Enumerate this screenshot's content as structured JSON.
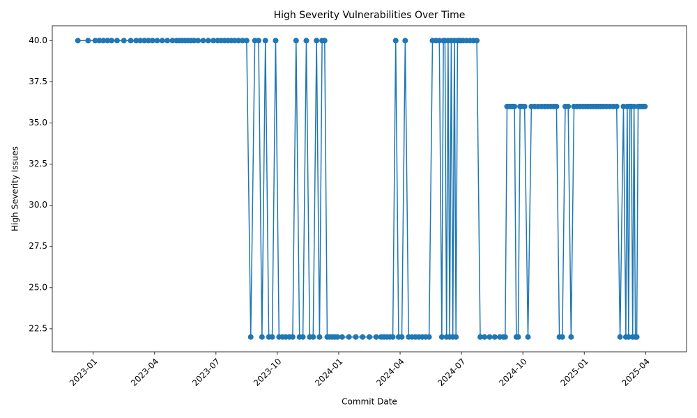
{
  "chart_data": {
    "type": "line",
    "title": "High Severity Vulnerabilities Over Time",
    "x_label": "Commit Date",
    "y_label": "High Severity Issues",
    "color": "#1f77b4",
    "grid": false,
    "xlim": [
      "2022-11",
      "2025-06"
    ],
    "xticks": [
      "2023-01",
      "2023-04",
      "2023-07",
      "2023-10",
      "2024-01",
      "2024-04",
      "2024-07",
      "2024-10",
      "2025-01",
      "2025-04"
    ],
    "ylim": [
      21.1,
      40.9
    ],
    "yticks": [
      22.5,
      {
        "value": 25,
        "label": "25.0"
      },
      27.5,
      {
        "value": 30,
        "label": "30.0"
      },
      32.5,
      {
        "value": 35,
        "label": "35.0"
      },
      37.5,
      {
        "value": 40,
        "label": "40.0"
      }
    ],
    "x": [
      "2022-12",
      "2022-12",
      "2023-01",
      "2023-01",
      "2023-01",
      "2023-01",
      "2023-01",
      "2023-02",
      "2023-02",
      "2023-02",
      "2023-03",
      "2023-03",
      "2023-03",
      "2023-03",
      "2023-03",
      "2023-04",
      "2023-04",
      "2023-04",
      "2023-04",
      "2023-05",
      "2023-05",
      "2023-05",
      "2023-05",
      "2023-05",
      "2023-05",
      "2023-05",
      "2023-06",
      "2023-06",
      "2023-06",
      "2023-06",
      "2023-07",
      "2023-07",
      "2023-07",
      "2023-07",
      "2023-07",
      "2023-07",
      "2023-08",
      "2023-08",
      "2023-08",
      "2023-08",
      "2023-08",
      "2023-09",
      "2023-09",
      "2023-09",
      "2023-09",
      "2023-09",
      "2023-09",
      "2023-10",
      "2023-10",
      "2023-10",
      "2023-10",
      "2023-10",
      "2023-10",
      "2023-11",
      "2023-11",
      "2023-11",
      "2023-11",
      "2023-11",
      "2023-11",
      "2023-12",
      "2023-12",
      "2023-12",
      "2023-12",
      "2023-12",
      "2023-12",
      "2023-12",
      "2023-12",
      "2024-01",
      "2024-01",
      "2024-01",
      "2024-02",
      "2024-02",
      "2024-02",
      "2024-03",
      "2024-03",
      "2024-03",
      "2024-03",
      "2024-03",
      "2024-03",
      "2024-03",
      "2024-04",
      "2024-04",
      "2024-04",
      "2024-04",
      "2024-04",
      "2024-04",
      "2024-05",
      "2024-05",
      "2024-05",
      "2024-05",
      "2024-05",
      "2024-05",
      "2024-06",
      "2024-06",
      "2024-06",
      "2024-06",
      "2024-06",
      "2024-06",
      "2024-06",
      "2024-06",
      "2024-06",
      "2024-06",
      "2024-06",
      "2024-06",
      "2024-06",
      "2024-07",
      "2024-07",
      "2024-07",
      "2024-07",
      "2024-07",
      "2024-07",
      "2024-08",
      "2024-08",
      "2024-08",
      "2024-08",
      "2024-09",
      "2024-09",
      "2024-09",
      "2024-09",
      "2024-09",
      "2024-09",
      "2024-09",
      "2024-09",
      "2024-09",
      "2024-09",
      "2024-09",
      "2024-10",
      "2024-10",
      "2024-10",
      "2024-10",
      "2024-10",
      "2024-10",
      "2024-11",
      "2024-11",
      "2024-11",
      "2024-11",
      "2024-11",
      "2024-11",
      "2024-11",
      "2024-12",
      "2024-12",
      "2024-12",
      "2024-12",
      "2024-12",
      "2024-12",
      "2024-12",
      "2025-01",
      "2025-01",
      "2025-01",
      "2025-01",
      "2025-01",
      "2025-01",
      "2025-01",
      "2025-01",
      "2025-02",
      "2025-02",
      "2025-02",
      "2025-02",
      "2025-02",
      "2025-02",
      "2025-03",
      "2025-03",
      "2025-03",
      "2025-03",
      "2025-03",
      "2025-03",
      "2025-03",
      "2025-03",
      "2025-03",
      "2025-03",
      "2025-03",
      "2025-03",
      "2025-03",
      "2025-03",
      "2025-03"
    ],
    "values": [
      40,
      40,
      40,
      40,
      40,
      40,
      40,
      40,
      40,
      40,
      40,
      40,
      40,
      40,
      40,
      40,
      40,
      40,
      40,
      40,
      40,
      40,
      40,
      40,
      40,
      40,
      40,
      40,
      40,
      40,
      40,
      40,
      40,
      40,
      40,
      40,
      40,
      40,
      40,
      22,
      40,
      40,
      22,
      40,
      22,
      22,
      40,
      22,
      22,
      22,
      22,
      22,
      40,
      22,
      22,
      40,
      22,
      22,
      40,
      22,
      40,
      40,
      22,
      22,
      22,
      22,
      22,
      22,
      22,
      22,
      22,
      22,
      22,
      22,
      22,
      22,
      22,
      22,
      40,
      22,
      22,
      40,
      22,
      22,
      22,
      22,
      22,
      22,
      22,
      40,
      40,
      40,
      22,
      40,
      40,
      22,
      40,
      22,
      40,
      22,
      40,
      22,
      40,
      40,
      40,
      40,
      40,
      40,
      40,
      40,
      22,
      22,
      22,
      22,
      22,
      22,
      22,
      36,
      36,
      36,
      36,
      36,
      22,
      22,
      36,
      36,
      36,
      22,
      36,
      36,
      36,
      36,
      36,
      36,
      36,
      36,
      36,
      22,
      22,
      36,
      36,
      22,
      36,
      36,
      36,
      36,
      36,
      36,
      36,
      36,
      36,
      36,
      36,
      36,
      36,
      36,
      36,
      36,
      22,
      36,
      22,
      36,
      22,
      36,
      36,
      22,
      36,
      22,
      22,
      36,
      36,
      36,
      36,
      36,
      36
    ]
  }
}
